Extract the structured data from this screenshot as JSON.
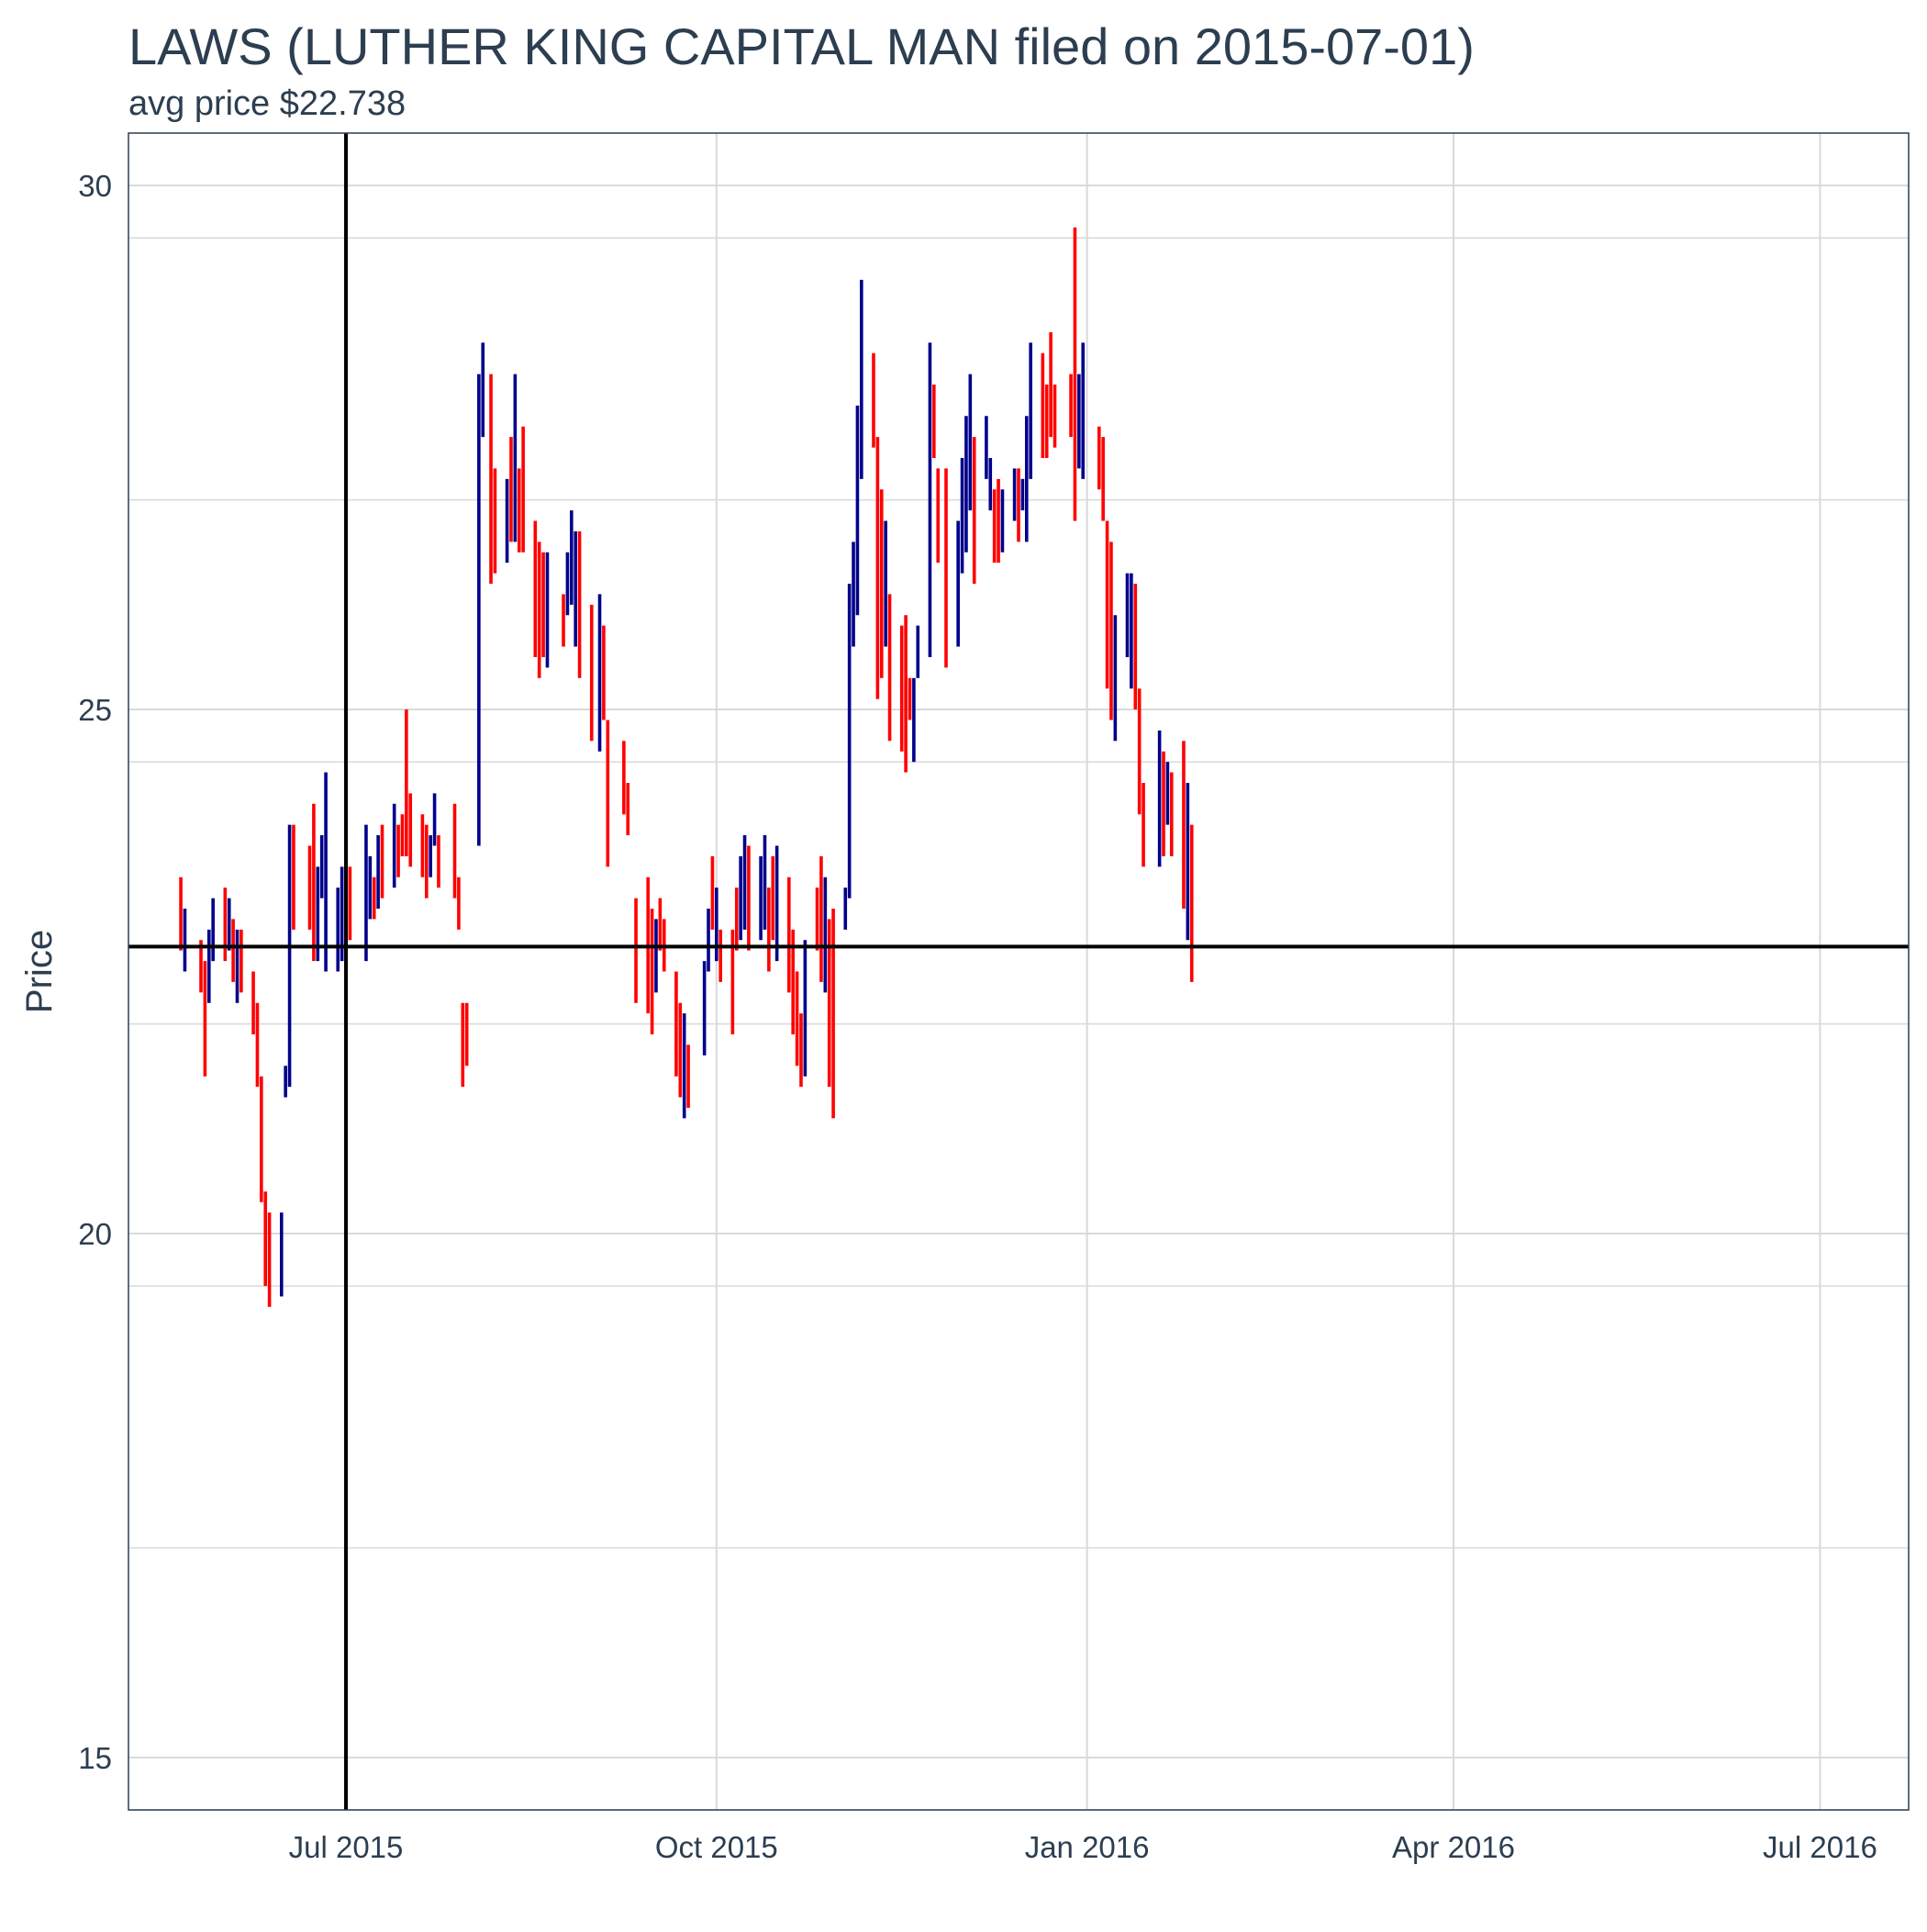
{
  "chart_data": {
    "type": "ohlc",
    "title": "LAWS (LUTHER KING CAPITAL MAN filed on 2015-07-01)",
    "subtitle": "avg price $22.738",
    "xlabel": "",
    "ylabel": "Price",
    "xlim": [
      "2015-05-08",
      "2016-07-23"
    ],
    "ylim": [
      14.5,
      30.5
    ],
    "y_ticks": [
      15,
      20,
      25,
      30
    ],
    "x_ticks": [
      {
        "date": "2015-07-01",
        "label": "Jul 2015"
      },
      {
        "date": "2015-10-01",
        "label": "Oct 2015"
      },
      {
        "date": "2016-01-01",
        "label": "Jan 2016"
      },
      {
        "date": "2016-04-01",
        "label": "Apr 2016"
      },
      {
        "date": "2016-07-01",
        "label": "Jul 2016"
      }
    ],
    "reference_lines": {
      "filing_date": "2015-07-01",
      "avg_price": 22.738
    },
    "grid": true,
    "colors": {
      "up": "#00008b",
      "down": "#ff0000",
      "reference": "#000000",
      "grid": "#d9d9d9",
      "text": "#2c3e50"
    },
    "points": [
      [
        "2015-05-21",
        23.4,
        22.7,
        "down"
      ],
      [
        "2015-05-22",
        23.1,
        22.5,
        "up"
      ],
      [
        "2015-05-26",
        22.8,
        22.3,
        "down"
      ],
      [
        "2015-05-27",
        22.6,
        21.5,
        "down"
      ],
      [
        "2015-05-28",
        22.9,
        22.2,
        "up"
      ],
      [
        "2015-05-29",
        23.2,
        22.6,
        "up"
      ],
      [
        "2015-06-01",
        23.3,
        22.6,
        "down"
      ],
      [
        "2015-06-02",
        23.2,
        22.7,
        "up"
      ],
      [
        "2015-06-03",
        23.0,
        22.4,
        "down"
      ],
      [
        "2015-06-04",
        22.9,
        22.2,
        "up"
      ],
      [
        "2015-06-05",
        22.9,
        22.3,
        "down"
      ],
      [
        "2015-06-08",
        22.5,
        21.9,
        "down"
      ],
      [
        "2015-06-09",
        22.2,
        21.4,
        "down"
      ],
      [
        "2015-06-10",
        21.5,
        20.3,
        "down"
      ],
      [
        "2015-06-11",
        20.4,
        19.5,
        "down"
      ],
      [
        "2015-06-12",
        20.2,
        19.3,
        "down"
      ],
      [
        "2015-06-15",
        20.2,
        19.4,
        "up"
      ],
      [
        "2015-06-16",
        21.6,
        21.3,
        "up"
      ],
      [
        "2015-06-17",
        23.9,
        21.4,
        "up"
      ],
      [
        "2015-06-18",
        23.9,
        22.9,
        "down"
      ],
      [
        "2015-06-22",
        23.7,
        22.9,
        "down"
      ],
      [
        "2015-06-23",
        24.1,
        22.6,
        "down"
      ],
      [
        "2015-06-24",
        23.5,
        22.6,
        "up"
      ],
      [
        "2015-06-25",
        23.8,
        23.2,
        "up"
      ],
      [
        "2015-06-26",
        24.4,
        22.5,
        "up"
      ],
      [
        "2015-06-29",
        23.3,
        22.5,
        "up"
      ],
      [
        "2015-06-30",
        23.5,
        22.6,
        "up"
      ],
      [
        "2015-07-01",
        23.7,
        23.0,
        "up"
      ],
      [
        "2015-07-02",
        23.5,
        22.8,
        "down"
      ],
      [
        "2015-07-06",
        23.9,
        22.6,
        "up"
      ],
      [
        "2015-07-07",
        23.6,
        23.0,
        "up"
      ],
      [
        "2015-07-08",
        23.4,
        23.0,
        "down"
      ],
      [
        "2015-07-09",
        23.8,
        23.1,
        "up"
      ],
      [
        "2015-07-10",
        23.9,
        23.2,
        "down"
      ],
      [
        "2015-07-13",
        24.1,
        23.3,
        "up"
      ],
      [
        "2015-07-14",
        23.9,
        23.4,
        "down"
      ],
      [
        "2015-07-15",
        24.0,
        23.6,
        "down"
      ],
      [
        "2015-07-16",
        25.0,
        23.6,
        "down"
      ],
      [
        "2015-07-17",
        24.2,
        23.5,
        "down"
      ],
      [
        "2015-07-20",
        24.0,
        23.4,
        "down"
      ],
      [
        "2015-07-21",
        23.9,
        23.2,
        "down"
      ],
      [
        "2015-07-22",
        23.8,
        23.4,
        "up"
      ],
      [
        "2015-07-23",
        24.2,
        23.7,
        "up"
      ],
      [
        "2015-07-24",
        23.8,
        23.3,
        "down"
      ],
      [
        "2015-07-28",
        24.1,
        23.2,
        "down"
      ],
      [
        "2015-07-29",
        23.4,
        22.9,
        "down"
      ],
      [
        "2015-07-30",
        22.2,
        21.4,
        "down"
      ],
      [
        "2015-07-31",
        22.2,
        21.6,
        "down"
      ],
      [
        "2015-08-03",
        28.2,
        23.7,
        "up"
      ],
      [
        "2015-08-04",
        28.5,
        27.6,
        "up"
      ],
      [
        "2015-08-06",
        28.2,
        26.2,
        "down"
      ],
      [
        "2015-08-07",
        27.3,
        26.3,
        "down"
      ],
      [
        "2015-08-10",
        27.2,
        26.4,
        "up"
      ],
      [
        "2015-08-11",
        27.6,
        26.6,
        "down"
      ],
      [
        "2015-08-12",
        28.2,
        26.6,
        "up"
      ],
      [
        "2015-08-13",
        27.3,
        26.5,
        "down"
      ],
      [
        "2015-08-14",
        27.7,
        26.5,
        "down"
      ],
      [
        "2015-08-17",
        26.8,
        25.5,
        "down"
      ],
      [
        "2015-08-18",
        26.6,
        25.3,
        "down"
      ],
      [
        "2015-08-19",
        26.5,
        25.5,
        "down"
      ],
      [
        "2015-08-20",
        26.5,
        25.4,
        "up"
      ],
      [
        "2015-08-24",
        26.1,
        25.6,
        "down"
      ],
      [
        "2015-08-25",
        26.5,
        25.9,
        "up"
      ],
      [
        "2015-08-26",
        26.9,
        26.0,
        "up"
      ],
      [
        "2015-08-27",
        26.7,
        25.6,
        "up"
      ],
      [
        "2015-08-28",
        26.7,
        25.3,
        "down"
      ],
      [
        "2015-08-31",
        26.0,
        24.7,
        "down"
      ],
      [
        "2015-09-02",
        26.1,
        24.6,
        "up"
      ],
      [
        "2015-09-03",
        25.8,
        24.9,
        "down"
      ],
      [
        "2015-09-04",
        24.9,
        23.5,
        "down"
      ],
      [
        "2015-09-08",
        24.7,
        24.0,
        "down"
      ],
      [
        "2015-09-09",
        24.3,
        23.8,
        "down"
      ],
      [
        "2015-09-11",
        23.2,
        22.2,
        "down"
      ],
      [
        "2015-09-14",
        23.4,
        22.1,
        "down"
      ],
      [
        "2015-09-15",
        23.1,
        21.9,
        "down"
      ],
      [
        "2015-09-16",
        23.0,
        22.3,
        "up"
      ],
      [
        "2015-09-17",
        23.2,
        22.7,
        "down"
      ],
      [
        "2015-09-18",
        23.0,
        22.5,
        "down"
      ],
      [
        "2015-09-21",
        22.5,
        21.5,
        "down"
      ],
      [
        "2015-09-22",
        22.2,
        21.3,
        "down"
      ],
      [
        "2015-09-23",
        22.1,
        21.1,
        "up"
      ],
      [
        "2015-09-24",
        21.8,
        21.2,
        "down"
      ],
      [
        "2015-09-28",
        22.6,
        21.7,
        "up"
      ],
      [
        "2015-09-29",
        23.1,
        22.5,
        "up"
      ],
      [
        "2015-09-30",
        23.6,
        22.9,
        "down"
      ],
      [
        "2015-10-01",
        23.3,
        22.6,
        "up"
      ],
      [
        "2015-10-02",
        22.9,
        22.4,
        "down"
      ],
      [
        "2015-10-05",
        22.9,
        21.9,
        "down"
      ],
      [
        "2015-10-06",
        23.3,
        22.7,
        "down"
      ],
      [
        "2015-10-07",
        23.6,
        22.8,
        "up"
      ],
      [
        "2015-10-08",
        23.8,
        22.9,
        "up"
      ],
      [
        "2015-10-09",
        23.7,
        22.7,
        "down"
      ],
      [
        "2015-10-12",
        23.6,
        22.8,
        "up"
      ],
      [
        "2015-10-13",
        23.8,
        22.9,
        "up"
      ],
      [
        "2015-10-14",
        23.3,
        22.5,
        "down"
      ],
      [
        "2015-10-15",
        23.6,
        22.8,
        "down"
      ],
      [
        "2015-10-16",
        23.7,
        22.6,
        "up"
      ],
      [
        "2015-10-19",
        23.4,
        22.3,
        "down"
      ],
      [
        "2015-10-20",
        22.9,
        21.9,
        "down"
      ],
      [
        "2015-10-21",
        22.5,
        21.6,
        "down"
      ],
      [
        "2015-10-22",
        22.1,
        21.4,
        "down"
      ],
      [
        "2015-10-23",
        22.8,
        21.5,
        "up"
      ],
      [
        "2015-10-26",
        23.3,
        22.7,
        "down"
      ],
      [
        "2015-10-27",
        23.6,
        22.4,
        "down"
      ],
      [
        "2015-10-28",
        23.4,
        22.3,
        "up"
      ],
      [
        "2015-10-29",
        23.0,
        21.4,
        "down"
      ],
      [
        "2015-10-30",
        23.1,
        21.1,
        "down"
      ],
      [
        "2015-11-02",
        23.3,
        22.9,
        "up"
      ],
      [
        "2015-11-03",
        26.2,
        23.2,
        "up"
      ],
      [
        "2015-11-04",
        26.6,
        25.6,
        "up"
      ],
      [
        "2015-11-05",
        27.9,
        25.9,
        "up"
      ],
      [
        "2015-11-06",
        29.1,
        27.2,
        "up"
      ],
      [
        "2015-11-09",
        28.4,
        27.5,
        "down"
      ],
      [
        "2015-11-10",
        27.6,
        25.1,
        "down"
      ],
      [
        "2015-11-11",
        27.1,
        25.3,
        "down"
      ],
      [
        "2015-11-12",
        26.8,
        25.6,
        "up"
      ],
      [
        "2015-11-13",
        26.1,
        24.7,
        "down"
      ],
      [
        "2015-11-16",
        25.8,
        24.6,
        "down"
      ],
      [
        "2015-11-17",
        25.9,
        24.4,
        "down"
      ],
      [
        "2015-11-18",
        25.3,
        24.9,
        "down"
      ],
      [
        "2015-11-19",
        25.3,
        24.5,
        "up"
      ],
      [
        "2015-11-20",
        25.8,
        25.3,
        "up"
      ],
      [
        "2015-11-23",
        28.5,
        25.5,
        "up"
      ],
      [
        "2015-11-24",
        28.1,
        27.4,
        "down"
      ],
      [
        "2015-11-25",
        27.3,
        26.4,
        "down"
      ],
      [
        "2015-11-27",
        27.3,
        25.4,
        "down"
      ],
      [
        "2015-11-30",
        26.8,
        25.6,
        "up"
      ],
      [
        "2015-12-01",
        27.4,
        26.3,
        "up"
      ],
      [
        "2015-12-02",
        27.8,
        26.5,
        "up"
      ],
      [
        "2015-12-03",
        28.2,
        26.9,
        "up"
      ],
      [
        "2015-12-04",
        27.6,
        26.2,
        "down"
      ],
      [
        "2015-12-07",
        27.8,
        27.2,
        "up"
      ],
      [
        "2015-12-08",
        27.4,
        26.9,
        "up"
      ],
      [
        "2015-12-09",
        27.1,
        26.4,
        "down"
      ],
      [
        "2015-12-10",
        27.2,
        26.4,
        "down"
      ],
      [
        "2015-12-11",
        27.1,
        26.5,
        "up"
      ],
      [
        "2015-12-14",
        27.3,
        26.8,
        "up"
      ],
      [
        "2015-12-15",
        27.3,
        26.6,
        "down"
      ],
      [
        "2015-12-16",
        27.2,
        26.9,
        "up"
      ],
      [
        "2015-12-17",
        27.8,
        26.6,
        "up"
      ],
      [
        "2015-12-18",
        28.5,
        27.2,
        "up"
      ],
      [
        "2015-12-21",
        28.4,
        27.4,
        "down"
      ],
      [
        "2015-12-22",
        28.1,
        27.4,
        "down"
      ],
      [
        "2015-12-23",
        28.6,
        27.6,
        "down"
      ],
      [
        "2015-12-24",
        28.1,
        27.5,
        "down"
      ],
      [
        "2015-12-28",
        28.2,
        27.6,
        "down"
      ],
      [
        "2015-12-29",
        29.6,
        26.8,
        "down"
      ],
      [
        "2015-12-30",
        28.2,
        27.3,
        "up"
      ],
      [
        "2015-12-31",
        28.5,
        27.2,
        "up"
      ],
      [
        "2016-01-04",
        27.7,
        27.1,
        "down"
      ],
      [
        "2016-01-05",
        27.6,
        26.8,
        "down"
      ],
      [
        "2016-01-06",
        26.8,
        25.2,
        "down"
      ],
      [
        "2016-01-07",
        26.6,
        24.9,
        "down"
      ],
      [
        "2016-01-08",
        25.9,
        24.7,
        "up"
      ],
      [
        "2016-01-11",
        26.3,
        25.5,
        "up"
      ],
      [
        "2016-01-12",
        26.3,
        25.2,
        "up"
      ],
      [
        "2016-01-13",
        26.2,
        25.0,
        "down"
      ],
      [
        "2016-01-14",
        25.2,
        24.0,
        "down"
      ],
      [
        "2016-01-15",
        24.3,
        23.5,
        "down"
      ],
      [
        "2016-01-19",
        24.8,
        23.5,
        "up"
      ],
      [
        "2016-01-20",
        24.6,
        23.6,
        "down"
      ],
      [
        "2016-01-21",
        24.5,
        23.9,
        "up"
      ],
      [
        "2016-01-22",
        24.4,
        23.6,
        "down"
      ],
      [
        "2016-01-25",
        24.7,
        23.1,
        "down"
      ],
      [
        "2016-01-26",
        24.3,
        22.8,
        "up"
      ],
      [
        "2016-01-27",
        23.9,
        22.4,
        "down"
      ]
    ]
  }
}
